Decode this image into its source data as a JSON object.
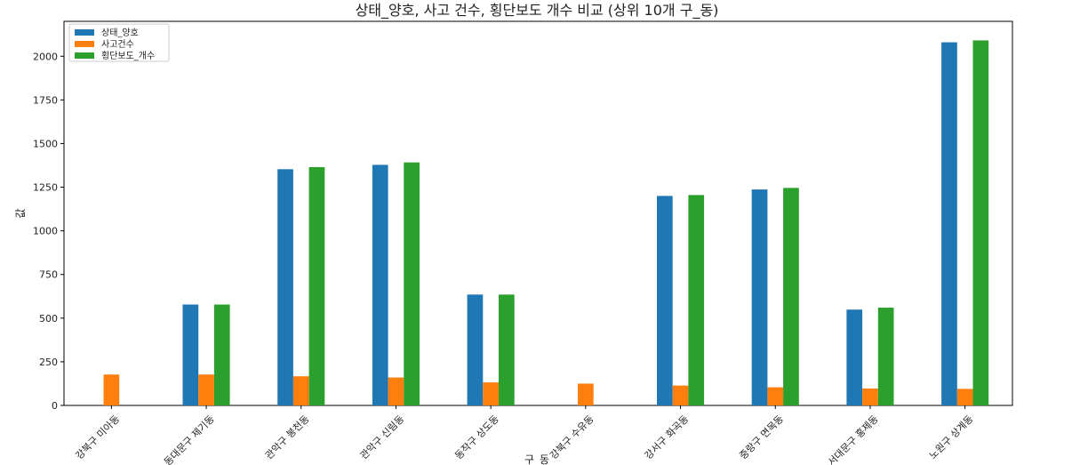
{
  "chart_data": {
    "type": "bar",
    "title": "상태_양호, 사고 건수, 횡단보도 개수 비교 (상위 10개 구_동)",
    "xlabel": "구_동",
    "ylabel": "값",
    "ylim": [
      0,
      2200
    ],
    "yticks": [
      0,
      250,
      500,
      750,
      1000,
      1250,
      1500,
      1750,
      2000
    ],
    "legend_position": "top-left",
    "grid": false,
    "categories": [
      "강북구 미아동",
      "동대문구 제기동",
      "관악구 봉천동",
      "관악구 신림동",
      "동작구 상도동",
      "강북구 수유동",
      "강서구 화곡동",
      "중랑구 면목동",
      "서대문구 홍제동",
      "노원구 상계동"
    ],
    "series": [
      {
        "name": "상태_양호",
        "color": "#1f77b4",
        "values": [
          0,
          578,
          1353,
          1378,
          635,
          0,
          1200,
          1237,
          549,
          2080
        ]
      },
      {
        "name": "사고건수",
        "color": "#ff7f0e",
        "values": [
          177,
          177,
          167,
          160,
          132,
          125,
          114,
          104,
          97,
          95
        ]
      },
      {
        "name": "횡단보도_개수",
        "color": "#2ca02c",
        "values": [
          0,
          578,
          1365,
          1392,
          635,
          0,
          1205,
          1246,
          560,
          2091
        ]
      }
    ]
  }
}
